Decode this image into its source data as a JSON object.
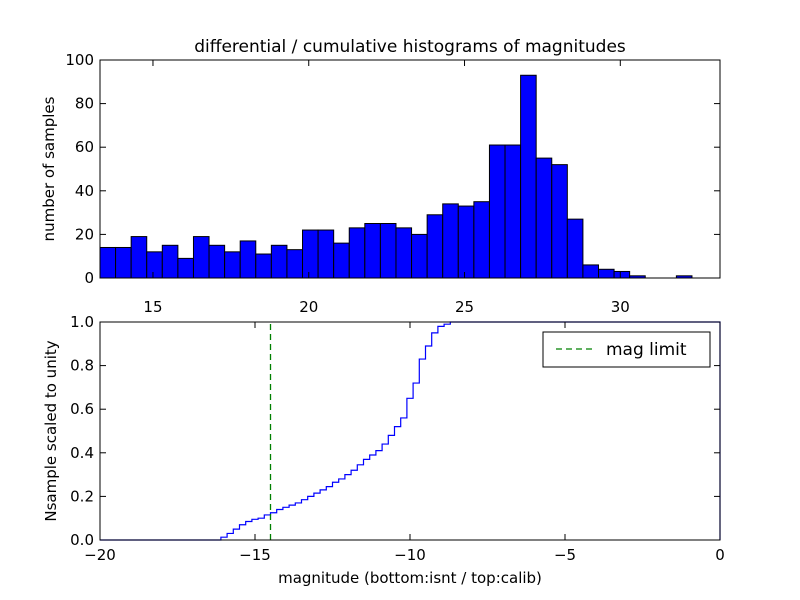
{
  "chart_data": [
    {
      "type": "bar",
      "title": "differential / cumulative histograms of magnitudes",
      "xlabel": "",
      "ylabel": "number of samples",
      "xlim": [
        13.3,
        33.2
      ],
      "ylim": [
        0,
        100
      ],
      "xticks": [
        15,
        20,
        25,
        30
      ],
      "yticks": [
        0,
        20,
        40,
        60,
        80,
        100
      ],
      "bin_start": 13.3,
      "bin_width": 0.5,
      "values": [
        14,
        14,
        19,
        12,
        15,
        9,
        19,
        15,
        12,
        17,
        11,
        15,
        13,
        22,
        22,
        16,
        23,
        25,
        25,
        23,
        20,
        29,
        34,
        33,
        35,
        61,
        61,
        93,
        55,
        52,
        27,
        6,
        4,
        3,
        1,
        0,
        0,
        1,
        0
      ],
      "series_color": "#0000ff",
      "tick_position": "top"
    },
    {
      "type": "line",
      "title": "",
      "xlabel": "magnitude (bottom:isnt / top:calib)",
      "ylabel": "Nsample scaled to unity",
      "xlim": [
        -20,
        0
      ],
      "ylim": [
        0,
        1.0
      ],
      "xticks": [
        -20,
        -15,
        -10,
        -5,
        0
      ],
      "yticks": [
        0.0,
        0.2,
        0.4,
        0.6,
        0.8,
        1.0
      ],
      "step_start": -16.1,
      "step_width": 0.2,
      "values": [
        0.013,
        0.03,
        0.05,
        0.07,
        0.085,
        0.095,
        0.1,
        0.115,
        0.125,
        0.14,
        0.15,
        0.16,
        0.17,
        0.185,
        0.2,
        0.215,
        0.23,
        0.245,
        0.265,
        0.28,
        0.3,
        0.32,
        0.345,
        0.37,
        0.39,
        0.41,
        0.44,
        0.48,
        0.52,
        0.56,
        0.65,
        0.72,
        0.83,
        0.89,
        0.95,
        0.98,
        0.99,
        1.0
      ],
      "series_color": "#0000ff",
      "mag_limit": -14.5,
      "legend": {
        "label": "mag limit",
        "color": "#008000",
        "placement": "top-right"
      }
    }
  ]
}
